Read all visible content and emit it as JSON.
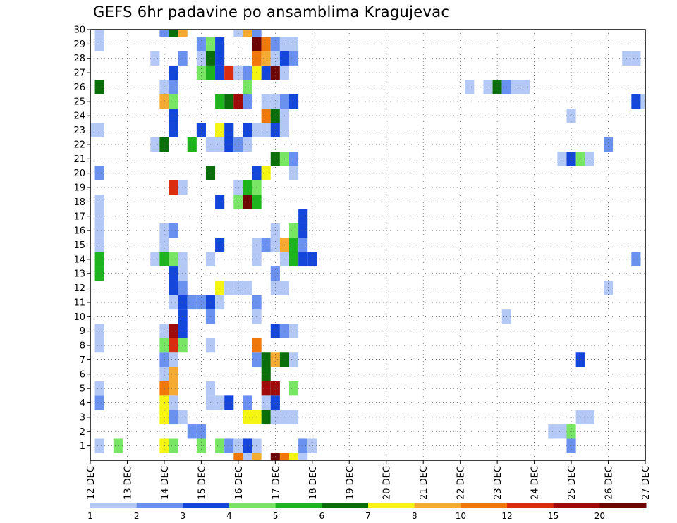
{
  "chart_data": {
    "type": "heatmap",
    "title": "GEFS 6hr padavine po ansamblima Kragujevac",
    "xlabel": "",
    "ylabel": "",
    "x_ticks": [
      "12 DEC",
      "13 DEC",
      "14 DEC",
      "15 DEC",
      "16 DEC",
      "17 DEC",
      "18 DEC",
      "19 DEC",
      "20 DEC",
      "21 DEC",
      "22 DEC",
      "23 DEC",
      "24 DEC",
      "25 DEC",
      "26 DEC",
      "27 DEC"
    ],
    "x_range": [
      0,
      60
    ],
    "x_unit": "6-hour steps from 12 DEC 00Z",
    "y_ticks": [
      1,
      2,
      3,
      4,
      5,
      6,
      7,
      8,
      9,
      10,
      11,
      12,
      13,
      14,
      15,
      16,
      17,
      18,
      19,
      20,
      21,
      22,
      23,
      24,
      25,
      26,
      27,
      28,
      29,
      30
    ],
    "y_range": [
      0,
      30
    ],
    "grid": true,
    "colorbar": {
      "labels": [
        "1",
        "2",
        "3",
        "4",
        "5",
        "6",
        "7",
        "8",
        "10",
        "12",
        "15",
        "20"
      ],
      "colors": [
        "#b4c8f5",
        "#6b91f0",
        "#1446dc",
        "#78e664",
        "#1eb41e",
        "#0a6e0a",
        "#f5f514",
        "#f5aa32",
        "#f0780a",
        "#dc2d0f",
        "#a00a0a",
        "#6e0505"
      ]
    },
    "cells": [
      [
        1,
        1,
        1
      ],
      [
        1,
        3,
        4
      ],
      [
        1,
        8,
        7
      ],
      [
        1,
        9,
        4
      ],
      [
        1,
        12,
        4
      ],
      [
        1,
        14,
        4
      ],
      [
        1,
        15,
        2
      ],
      [
        1,
        16,
        1
      ],
      [
        1,
        17,
        3
      ],
      [
        1,
        18,
        1
      ],
      [
        1,
        23,
        2
      ],
      [
        1,
        24,
        1
      ],
      [
        1,
        52,
        2
      ],
      [
        2,
        11,
        2
      ],
      [
        2,
        12,
        2
      ],
      [
        2,
        50,
        1
      ],
      [
        2,
        51,
        1
      ],
      [
        2,
        52,
        4
      ],
      [
        3,
        8,
        7
      ],
      [
        3,
        9,
        2
      ],
      [
        3,
        10,
        1
      ],
      [
        3,
        17,
        7
      ],
      [
        3,
        18,
        7
      ],
      [
        3,
        19,
        6
      ],
      [
        3,
        20,
        1
      ],
      [
        3,
        21,
        1
      ],
      [
        3,
        22,
        1
      ],
      [
        3,
        53,
        1
      ],
      [
        3,
        54,
        1
      ],
      [
        4,
        1,
        2
      ],
      [
        4,
        8,
        7
      ],
      [
        4,
        9,
        1
      ],
      [
        4,
        13,
        1
      ],
      [
        4,
        14,
        1
      ],
      [
        4,
        15,
        3
      ],
      [
        4,
        17,
        2
      ],
      [
        4,
        19,
        1
      ],
      [
        4,
        20,
        3
      ],
      [
        5,
        1,
        1
      ],
      [
        5,
        8,
        9
      ],
      [
        5,
        9,
        8
      ],
      [
        5,
        13,
        1
      ],
      [
        5,
        19,
        11
      ],
      [
        5,
        20,
        11
      ],
      [
        5,
        22,
        4
      ],
      [
        6,
        8,
        1
      ],
      [
        6,
        9,
        8
      ],
      [
        6,
        19,
        6
      ],
      [
        7,
        8,
        2
      ],
      [
        7,
        9,
        1
      ],
      [
        7,
        18,
        2
      ],
      [
        7,
        19,
        6
      ],
      [
        7,
        20,
        8
      ],
      [
        7,
        21,
        6
      ],
      [
        7,
        22,
        1
      ],
      [
        7,
        53,
        3
      ],
      [
        8,
        1,
        1
      ],
      [
        8,
        8,
        4
      ],
      [
        8,
        9,
        10
      ],
      [
        8,
        10,
        4
      ],
      [
        8,
        13,
        1
      ],
      [
        8,
        18,
        9
      ],
      [
        9,
        1,
        1
      ],
      [
        9,
        8,
        1
      ],
      [
        9,
        9,
        11
      ],
      [
        9,
        10,
        3
      ],
      [
        9,
        20,
        3
      ],
      [
        9,
        21,
        2
      ],
      [
        9,
        22,
        1
      ],
      [
        10,
        10,
        3
      ],
      [
        10,
        13,
        2
      ],
      [
        10,
        18,
        1
      ],
      [
        10,
        45,
        1
      ],
      [
        11,
        9,
        1
      ],
      [
        11,
        10,
        3
      ],
      [
        11,
        11,
        2
      ],
      [
        11,
        12,
        2
      ],
      [
        11,
        13,
        3
      ],
      [
        11,
        14,
        1
      ],
      [
        11,
        18,
        2
      ],
      [
        12,
        9,
        3
      ],
      [
        12,
        10,
        2
      ],
      [
        12,
        14,
        7
      ],
      [
        12,
        15,
        1
      ],
      [
        12,
        16,
        1
      ],
      [
        12,
        17,
        1
      ],
      [
        12,
        20,
        1
      ],
      [
        12,
        21,
        1
      ],
      [
        12,
        56,
        1
      ],
      [
        13,
        9,
        3
      ],
      [
        13,
        10,
        1
      ],
      [
        13,
        1,
        5
      ],
      [
        13,
        20,
        2
      ],
      [
        14,
        1,
        5
      ],
      [
        14,
        9,
        4
      ],
      [
        14,
        10,
        1
      ],
      [
        14,
        7,
        1
      ],
      [
        14,
        8,
        5
      ],
      [
        14,
        13,
        1
      ],
      [
        14,
        18,
        1
      ],
      [
        14,
        21,
        1
      ],
      [
        14,
        22,
        5
      ],
      [
        14,
        23,
        3
      ],
      [
        14,
        24,
        3
      ],
      [
        14,
        59,
        2
      ],
      [
        15,
        1,
        1
      ],
      [
        15,
        8,
        1
      ],
      [
        15,
        14,
        3
      ],
      [
        15,
        18,
        1
      ],
      [
        15,
        19,
        2
      ],
      [
        15,
        20,
        1
      ],
      [
        15,
        21,
        8
      ],
      [
        15,
        22,
        5
      ],
      [
        15,
        23,
        2
      ],
      [
        16,
        1,
        1
      ],
      [
        16,
        8,
        1
      ],
      [
        16,
        9,
        2
      ],
      [
        16,
        20,
        1
      ],
      [
        16,
        22,
        4
      ],
      [
        16,
        23,
        3
      ],
      [
        17,
        1,
        1
      ],
      [
        17,
        23,
        3
      ],
      [
        18,
        1,
        1
      ],
      [
        18,
        14,
        3
      ],
      [
        18,
        16,
        4
      ],
      [
        18,
        17,
        12
      ],
      [
        18,
        18,
        5
      ],
      [
        19,
        9,
        10
      ],
      [
        19,
        10,
        1
      ],
      [
        19,
        16,
        1
      ],
      [
        19,
        17,
        5
      ],
      [
        19,
        18,
        4
      ],
      [
        20,
        1,
        2
      ],
      [
        20,
        13,
        6
      ],
      [
        20,
        18,
        3
      ],
      [
        20,
        19,
        7
      ],
      [
        20,
        22,
        1
      ],
      [
        21,
        20,
        6
      ],
      [
        21,
        21,
        4
      ],
      [
        21,
        22,
        2
      ],
      [
        21,
        51,
        1
      ],
      [
        21,
        52,
        3
      ],
      [
        21,
        53,
        4
      ],
      [
        21,
        54,
        1
      ],
      [
        22,
        7,
        1
      ],
      [
        22,
        8,
        6
      ],
      [
        22,
        11,
        5
      ],
      [
        22,
        13,
        1
      ],
      [
        22,
        14,
        1
      ],
      [
        22,
        15,
        3
      ],
      [
        22,
        16,
        2
      ],
      [
        22,
        17,
        1
      ],
      [
        22,
        56,
        2
      ],
      [
        23,
        0,
        1
      ],
      [
        23,
        1,
        1
      ],
      [
        23,
        9,
        3
      ],
      [
        23,
        12,
        3
      ],
      [
        23,
        14,
        7
      ],
      [
        23,
        15,
        3
      ],
      [
        23,
        17,
        3
      ],
      [
        23,
        18,
        1
      ],
      [
        23,
        19,
        1
      ],
      [
        23,
        20,
        3
      ],
      [
        23,
        21,
        1
      ],
      [
        24,
        9,
        3
      ],
      [
        24,
        19,
        9
      ],
      [
        24,
        20,
        6
      ],
      [
        24,
        21,
        1
      ],
      [
        24,
        52,
        1
      ],
      [
        25,
        8,
        8
      ],
      [
        25,
        9,
        4
      ],
      [
        25,
        14,
        5
      ],
      [
        25,
        15,
        6
      ],
      [
        25,
        16,
        11
      ],
      [
        25,
        17,
        2
      ],
      [
        25,
        19,
        1
      ],
      [
        25,
        20,
        1
      ],
      [
        25,
        21,
        2
      ],
      [
        25,
        22,
        3
      ],
      [
        25,
        59,
        3
      ],
      [
        25,
        60,
        1
      ],
      [
        26,
        1,
        6
      ],
      [
        26,
        8,
        1
      ],
      [
        26,
        9,
        2
      ],
      [
        26,
        17,
        4
      ],
      [
        26,
        41,
        1
      ],
      [
        26,
        43,
        1
      ],
      [
        26,
        44,
        6
      ],
      [
        26,
        45,
        2
      ],
      [
        26,
        46,
        1
      ],
      [
        26,
        47,
        1
      ],
      [
        27,
        9,
        3
      ],
      [
        27,
        12,
        4
      ],
      [
        27,
        13,
        5
      ],
      [
        27,
        14,
        3
      ],
      [
        27,
        15,
        10
      ],
      [
        27,
        16,
        1
      ],
      [
        27,
        17,
        2
      ],
      [
        27,
        18,
        7
      ],
      [
        27,
        19,
        3
      ],
      [
        27,
        20,
        12
      ],
      [
        27,
        21,
        1
      ],
      [
        28,
        7,
        1
      ],
      [
        28,
        10,
        2
      ],
      [
        28,
        12,
        1
      ],
      [
        28,
        13,
        6
      ],
      [
        28,
        14,
        3
      ],
      [
        28,
        18,
        9
      ],
      [
        28,
        19,
        8
      ],
      [
        28,
        20,
        1
      ],
      [
        28,
        21,
        3
      ],
      [
        28,
        22,
        2
      ],
      [
        28,
        58,
        1
      ],
      [
        28,
        59,
        1
      ],
      [
        29,
        1,
        1
      ],
      [
        29,
        12,
        2
      ],
      [
        29,
        13,
        4
      ],
      [
        29,
        14,
        3
      ],
      [
        29,
        18,
        12
      ],
      [
        29,
        19,
        9
      ],
      [
        29,
        20,
        2
      ],
      [
        29,
        21,
        1
      ],
      [
        29,
        22,
        1
      ],
      [
        30,
        1,
        1
      ],
      [
        30,
        8,
        2
      ],
      [
        30,
        9,
        6
      ],
      [
        30,
        10,
        8
      ],
      [
        30,
        16,
        1
      ],
      [
        30,
        17,
        8
      ],
      [
        30,
        18,
        2
      ],
      [
        0,
        16,
        9
      ],
      [
        0,
        17,
        1
      ],
      [
        0,
        18,
        8
      ],
      [
        0,
        20,
        12
      ],
      [
        0,
        21,
        9
      ],
      [
        0,
        22,
        7
      ],
      [
        0,
        23,
        1
      ]
    ]
  }
}
